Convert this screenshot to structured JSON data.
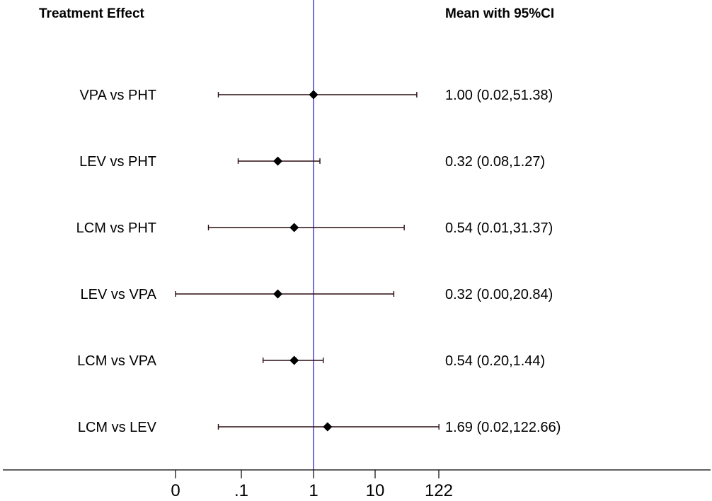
{
  "chart_data": {
    "type": "forest",
    "columns": {
      "left_header": "Treatment Effect",
      "right_header": "Mean with 95%CI"
    },
    "rows": [
      {
        "label": "VPA vs PHT",
        "mean": 1.0,
        "lower": 0.02,
        "upper": 51.38,
        "text": "1.00 (0.02,51.38)"
      },
      {
        "label": "LEV vs PHT",
        "mean": 0.32,
        "lower": 0.08,
        "upper": 1.27,
        "text": "0.32 (0.08,1.27)"
      },
      {
        "label": "LCM vs PHT",
        "mean": 0.54,
        "lower": 0.01,
        "upper": 31.37,
        "text": "0.54 (0.01,31.37)"
      },
      {
        "label": "LEV vs VPA",
        "mean": 0.32,
        "lower": 0.0,
        "upper": 20.84,
        "text": "0.32 (0.00,20.84)"
      },
      {
        "label": "LCM vs VPA",
        "mean": 0.54,
        "lower": 0.2,
        "upper": 1.44,
        "text": "0.54 (0.20,1.44)"
      },
      {
        "label": "LCM vs LEV",
        "mean": 1.69,
        "lower": 0.02,
        "upper": 122.66,
        "text": "1.69 (0.02,122.66)"
      }
    ],
    "x_axis": {
      "scale": "log",
      "ticks": [
        {
          "value": 0.001,
          "label": "0"
        },
        {
          "value": 0.1,
          "label": ".1"
        },
        {
          "value": 1,
          "label": "1"
        },
        {
          "value": 10,
          "label": "10"
        },
        {
          "value": 122,
          "label": "122"
        }
      ]
    },
    "reference_line": 1,
    "colors": {
      "reference_line": "#3a33c8",
      "ci_line": "#2a0d10",
      "marker": "#000000"
    }
  }
}
